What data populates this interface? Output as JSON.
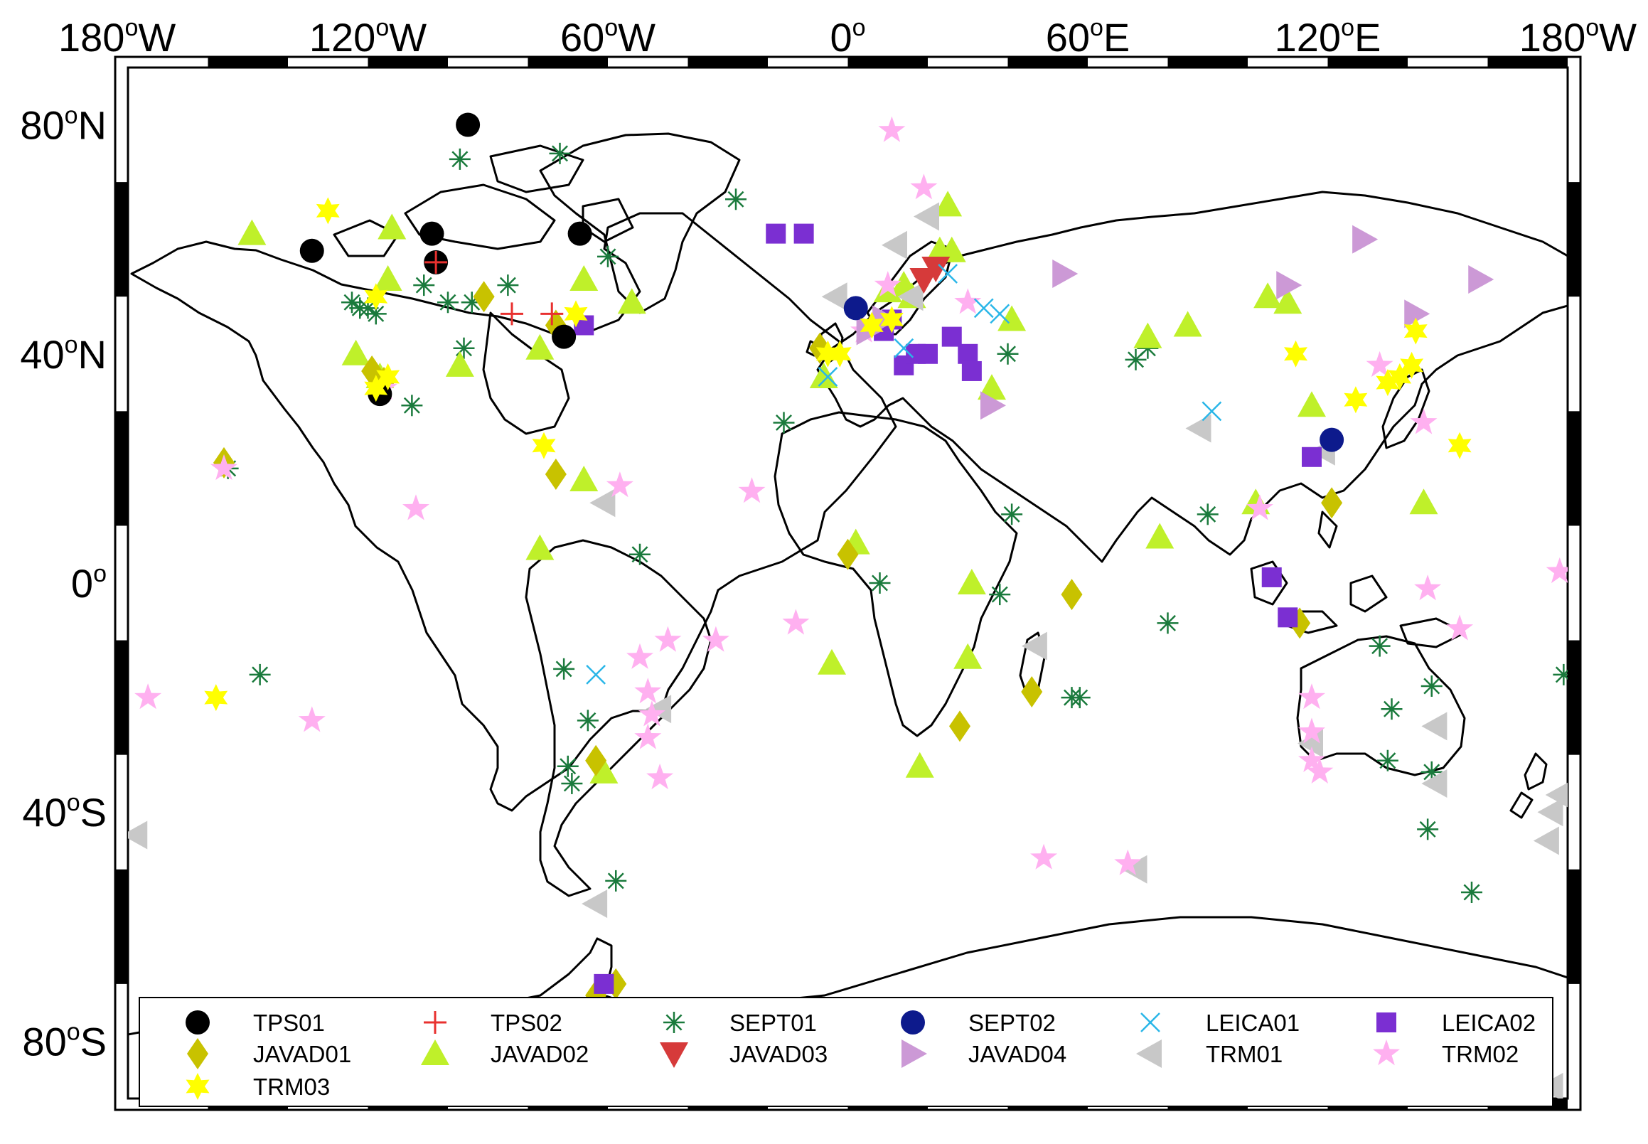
{
  "map": {
    "projection": "equirectangular",
    "lon_range": [
      -180,
      180
    ],
    "lat_range": [
      -90,
      90
    ],
    "frame_style": "alternating black and white border"
  },
  "axes": {
    "top_ticks": [
      {
        "lon": -180,
        "num": "180",
        "hemi": "W"
      },
      {
        "lon": -120,
        "num": "120",
        "hemi": "W"
      },
      {
        "lon": -60,
        "num": "60",
        "hemi": "W"
      },
      {
        "lon": 0,
        "num": "0",
        "hemi": ""
      },
      {
        "lon": 60,
        "num": "60",
        "hemi": "E"
      },
      {
        "lon": 120,
        "num": "120",
        "hemi": "E"
      },
      {
        "lon": 180,
        "num": "180",
        "hemi": "W"
      }
    ],
    "left_ticks": [
      {
        "lat": 80,
        "num": "80",
        "hemi": "N"
      },
      {
        "lat": 40,
        "num": "40",
        "hemi": "N"
      },
      {
        "lat": 0,
        "num": "0",
        "hemi": ""
      },
      {
        "lat": -40,
        "num": "40",
        "hemi": "S"
      },
      {
        "lat": -80,
        "num": "80",
        "hemi": "S"
      }
    ],
    "degree_symbol": "o"
  },
  "legend": {
    "placement": "bottom",
    "items": [
      {
        "key": "TPS01",
        "label": "TPS01",
        "marker": "circle",
        "color": "#000000"
      },
      {
        "key": "TPS02",
        "label": "TPS02",
        "marker": "plus",
        "color": "#e8312f"
      },
      {
        "key": "SEPT01",
        "label": "SEPT01",
        "marker": "asterisk",
        "color": "#1a7a3c"
      },
      {
        "key": "SEPT02",
        "label": "SEPT02",
        "marker": "circle",
        "color": "#0d1a8c"
      },
      {
        "key": "LEICA01",
        "label": "LEICA01",
        "marker": "x",
        "color": "#29b6e8"
      },
      {
        "key": "LEICA02",
        "label": "LEICA02",
        "marker": "square",
        "color": "#7b2fd2"
      },
      {
        "key": "JAVAD01",
        "label": "JAVAD01",
        "marker": "diamond",
        "color": "#c8c200"
      },
      {
        "key": "JAVAD02",
        "label": "JAVAD02",
        "marker": "triangle-up",
        "color": "#bff02a"
      },
      {
        "key": "JAVAD03",
        "label": "JAVAD03",
        "marker": "triangle-down",
        "color": "#d63a3a"
      },
      {
        "key": "JAVAD04",
        "label": "JAVAD04",
        "marker": "triangle-right",
        "color": "#cc99d6"
      },
      {
        "key": "TRM01",
        "label": "TRM01",
        "marker": "triangle-left",
        "color": "#c8c8c8"
      },
      {
        "key": "TRM02",
        "label": "TRM02",
        "marker": "star5",
        "color": "#ffb0f0"
      },
      {
        "key": "TRM03",
        "label": "TRM03",
        "marker": "star6",
        "color": "#ffff00"
      }
    ]
  },
  "stations": [
    {
      "type": "TPS01",
      "lon": -134,
      "lat": 58
    },
    {
      "type": "TPS01",
      "lon": -95,
      "lat": 80
    },
    {
      "type": "TPS01",
      "lon": -104,
      "lat": 61
    },
    {
      "type": "TPS01",
      "lon": -67,
      "lat": 61
    },
    {
      "type": "TPS01",
      "lon": -103,
      "lat": 56
    },
    {
      "type": "TPS01",
      "lon": -71,
      "lat": 43
    },
    {
      "type": "TPS01",
      "lon": -117,
      "lat": 33
    },
    {
      "type": "TPS02",
      "lon": -103,
      "lat": 56
    },
    {
      "type": "TPS02",
      "lon": -84,
      "lat": 47
    },
    {
      "type": "TPS02",
      "lon": -74,
      "lat": 47
    },
    {
      "type": "SEPT01",
      "lon": -97,
      "lat": 74
    },
    {
      "type": "SEPT01",
      "lon": -72,
      "lat": 75
    },
    {
      "type": "SEPT01",
      "lon": -60,
      "lat": 57
    },
    {
      "type": "SEPT01",
      "lon": -28,
      "lat": 67
    },
    {
      "type": "SEPT01",
      "lon": -124,
      "lat": 49
    },
    {
      "type": "SEPT01",
      "lon": -122,
      "lat": 48
    },
    {
      "type": "SEPT01",
      "lon": -120,
      "lat": 48
    },
    {
      "type": "SEPT01",
      "lon": -118,
      "lat": 47
    },
    {
      "type": "SEPT01",
      "lon": -106,
      "lat": 52
    },
    {
      "type": "SEPT01",
      "lon": -100,
      "lat": 49
    },
    {
      "type": "SEPT01",
      "lon": -94,
      "lat": 49
    },
    {
      "type": "SEPT01",
      "lon": -85,
      "lat": 52
    },
    {
      "type": "SEPT01",
      "lon": -96,
      "lat": 41
    },
    {
      "type": "SEPT01",
      "lon": -109,
      "lat": 31
    },
    {
      "type": "SEPT01",
      "lon": -155,
      "lat": 20
    },
    {
      "type": "SEPT01",
      "lon": -52,
      "lat": 5
    },
    {
      "type": "SEPT01",
      "lon": -147,
      "lat": -16
    },
    {
      "type": "SEPT01",
      "lon": -71,
      "lat": -15
    },
    {
      "type": "SEPT01",
      "lon": -65,
      "lat": -24
    },
    {
      "type": "SEPT01",
      "lon": -70,
      "lat": -32
    },
    {
      "type": "SEPT01",
      "lon": -69,
      "lat": -35
    },
    {
      "type": "SEPT01",
      "lon": -58,
      "lat": -52
    },
    {
      "type": "SEPT01",
      "lon": -16,
      "lat": 28
    },
    {
      "type": "SEPT01",
      "lon": 8,
      "lat": 0
    },
    {
      "type": "SEPT01",
      "lon": 40,
      "lat": 40
    },
    {
      "type": "SEPT01",
      "lon": 41,
      "lat": 12
    },
    {
      "type": "SEPT01",
      "lon": 38,
      "lat": -2
    },
    {
      "type": "SEPT01",
      "lon": 56,
      "lat": -20
    },
    {
      "type": "SEPT01",
      "lon": 58,
      "lat": -20
    },
    {
      "type": "SEPT01",
      "lon": 72,
      "lat": 39
    },
    {
      "type": "SEPT01",
      "lon": 75,
      "lat": 41
    },
    {
      "type": "SEPT01",
      "lon": 90,
      "lat": 12
    },
    {
      "type": "SEPT01",
      "lon": 80,
      "lat": -7
    },
    {
      "type": "SEPT01",
      "lon": 133,
      "lat": -11
    },
    {
      "type": "SEPT01",
      "lon": 136,
      "lat": -22
    },
    {
      "type": "SEPT01",
      "lon": 135,
      "lat": -31
    },
    {
      "type": "SEPT01",
      "lon": 146,
      "lat": -18
    },
    {
      "type": "SEPT01",
      "lon": 146,
      "lat": -33
    },
    {
      "type": "SEPT01",
      "lon": 145,
      "lat": -43
    },
    {
      "type": "SEPT01",
      "lon": 156,
      "lat": -54
    },
    {
      "type": "SEPT01",
      "lon": 179,
      "lat": -16
    },
    {
      "type": "SEPT01",
      "lon": 62,
      "lat": -75
    },
    {
      "type": "SEPT01",
      "lon": 77,
      "lat": -76
    },
    {
      "type": "SEPT02",
      "lon": 2,
      "lat": 48
    },
    {
      "type": "SEPT02",
      "lon": 121,
      "lat": 25
    },
    {
      "type": "LEICA01",
      "lon": -63,
      "lat": -16
    },
    {
      "type": "LEICA01",
      "lon": 38,
      "lat": 47
    },
    {
      "type": "LEICA01",
      "lon": 34,
      "lat": 48
    },
    {
      "type": "LEICA01",
      "lon": 25,
      "lat": 54
    },
    {
      "type": "LEICA01",
      "lon": 91,
      "lat": 30
    },
    {
      "type": "LEICA01",
      "lon": -5,
      "lat": 36
    },
    {
      "type": "LEICA01",
      "lon": 14,
      "lat": 41
    },
    {
      "type": "LEICA02",
      "lon": -18,
      "lat": 61
    },
    {
      "type": "LEICA02",
      "lon": -11,
      "lat": 61
    },
    {
      "type": "LEICA02",
      "lon": 14,
      "lat": 38
    },
    {
      "type": "LEICA02",
      "lon": 17,
      "lat": 40
    },
    {
      "type": "LEICA02",
      "lon": 20,
      "lat": 40
    },
    {
      "type": "LEICA02",
      "lon": 26,
      "lat": 43
    },
    {
      "type": "LEICA02",
      "lon": 30,
      "lat": 40
    },
    {
      "type": "LEICA02",
      "lon": 31,
      "lat": 37
    },
    {
      "type": "LEICA02",
      "lon": 11,
      "lat": 46
    },
    {
      "type": "LEICA02",
      "lon": 9,
      "lat": 44
    },
    {
      "type": "LEICA02",
      "lon": -66,
      "lat": 45
    },
    {
      "type": "LEICA02",
      "lon": 116,
      "lat": 22
    },
    {
      "type": "LEICA02",
      "lon": 106,
      "lat": 1
    },
    {
      "type": "LEICA02",
      "lon": 110,
      "lat": -6
    },
    {
      "type": "LEICA02",
      "lon": -61,
      "lat": -70
    },
    {
      "type": "JAVAD01",
      "lon": -156,
      "lat": 21
    },
    {
      "type": "JAVAD01",
      "lon": -119,
      "lat": 37
    },
    {
      "type": "JAVAD01",
      "lon": -116,
      "lat": 35
    },
    {
      "type": "JAVAD01",
      "lon": -91,
      "lat": 50
    },
    {
      "type": "JAVAD01",
      "lon": -73,
      "lat": 45
    },
    {
      "type": "JAVAD01",
      "lon": -73,
      "lat": 19
    },
    {
      "type": "JAVAD01",
      "lon": -7,
      "lat": 41
    },
    {
      "type": "JAVAD01",
      "lon": 0,
      "lat": 5
    },
    {
      "type": "JAVAD01",
      "lon": 56,
      "lat": -2
    },
    {
      "type": "JAVAD01",
      "lon": 28,
      "lat": -25
    },
    {
      "type": "JAVAD01",
      "lon": 46,
      "lat": -19
    },
    {
      "type": "JAVAD01",
      "lon": 121,
      "lat": 14
    },
    {
      "type": "JAVAD01",
      "lon": 113,
      "lat": -7
    },
    {
      "type": "JAVAD01",
      "lon": -63,
      "lat": -31
    },
    {
      "type": "JAVAD01",
      "lon": -63,
      "lat": -72
    },
    {
      "type": "JAVAD01",
      "lon": -58,
      "lat": -70
    },
    {
      "type": "JAVAD02",
      "lon": -149,
      "lat": 61
    },
    {
      "type": "JAVAD02",
      "lon": -114,
      "lat": 62
    },
    {
      "type": "JAVAD02",
      "lon": -115,
      "lat": 53
    },
    {
      "type": "JAVAD02",
      "lon": -123,
      "lat": 40
    },
    {
      "type": "JAVAD02",
      "lon": -117,
      "lat": 36
    },
    {
      "type": "JAVAD02",
      "lon": -97,
      "lat": 38
    },
    {
      "type": "JAVAD02",
      "lon": -77,
      "lat": 41
    },
    {
      "type": "JAVAD02",
      "lon": -66,
      "lat": 53
    },
    {
      "type": "JAVAD02",
      "lon": -54,
      "lat": 49
    },
    {
      "type": "JAVAD02",
      "lon": -66,
      "lat": 18
    },
    {
      "type": "JAVAD02",
      "lon": -77,
      "lat": 6
    },
    {
      "type": "JAVAD02",
      "lon": -61,
      "lat": -33
    },
    {
      "type": "JAVAD02",
      "lon": -6,
      "lat": 36
    },
    {
      "type": "JAVAD02",
      "lon": -4,
      "lat": -14
    },
    {
      "type": "JAVAD02",
      "lon": 2,
      "lat": 7
    },
    {
      "type": "JAVAD02",
      "lon": 10,
      "lat": 51
    },
    {
      "type": "JAVAD02",
      "lon": 14,
      "lat": 52
    },
    {
      "type": "JAVAD02",
      "lon": 16,
      "lat": 50
    },
    {
      "type": "JAVAD02",
      "lon": 23,
      "lat": 58
    },
    {
      "type": "JAVAD02",
      "lon": 26,
      "lat": 58
    },
    {
      "type": "JAVAD02",
      "lon": 25,
      "lat": 66
    },
    {
      "type": "JAVAD02",
      "lon": 31,
      "lat": 0
    },
    {
      "type": "JAVAD02",
      "lon": 36,
      "lat": 34
    },
    {
      "type": "JAVAD02",
      "lon": 41,
      "lat": 46
    },
    {
      "type": "JAVAD02",
      "lon": 30,
      "lat": -13
    },
    {
      "type": "JAVAD02",
      "lon": 18,
      "lat": -32
    },
    {
      "type": "JAVAD02",
      "lon": 75,
      "lat": 43
    },
    {
      "type": "JAVAD02",
      "lon": 85,
      "lat": 45
    },
    {
      "type": "JAVAD02",
      "lon": 78,
      "lat": 8
    },
    {
      "type": "JAVAD02",
      "lon": 105,
      "lat": 50
    },
    {
      "type": "JAVAD02",
      "lon": 110,
      "lat": 49
    },
    {
      "type": "JAVAD02",
      "lon": 116,
      "lat": 31
    },
    {
      "type": "JAVAD02",
      "lon": 144,
      "lat": 14
    },
    {
      "type": "JAVAD02",
      "lon": 102,
      "lat": 14
    },
    {
      "type": "JAVAD03",
      "lon": 22,
      "lat": 55
    },
    {
      "type": "JAVAD03",
      "lon": 19,
      "lat": 53
    },
    {
      "type": "JAVAD04",
      "lon": 54,
      "lat": 54
    },
    {
      "type": "JAVAD04",
      "lon": 129,
      "lat": 60
    },
    {
      "type": "JAVAD04",
      "lon": 110,
      "lat": 52
    },
    {
      "type": "JAVAD04",
      "lon": 158,
      "lat": 53
    },
    {
      "type": "JAVAD04",
      "lon": 142,
      "lat": 47
    },
    {
      "type": "JAVAD04",
      "lon": 36,
      "lat": 31
    },
    {
      "type": "JAVAD04",
      "lon": 9,
      "lat": 46
    },
    {
      "type": "JAVAD04",
      "lon": 5,
      "lat": 44
    },
    {
      "type": "TRM01",
      "lon": -3,
      "lat": 50
    },
    {
      "type": "TRM01",
      "lon": 12,
      "lat": 59
    },
    {
      "type": "TRM01",
      "lon": 16,
      "lat": 50
    },
    {
      "type": "TRM01",
      "lon": 20,
      "lat": 64
    },
    {
      "type": "TRM01",
      "lon": 88,
      "lat": 27
    },
    {
      "type": "TRM01",
      "lon": 119,
      "lat": 23
    },
    {
      "type": "TRM01",
      "lon": -61,
      "lat": 14
    },
    {
      "type": "TRM01",
      "lon": -47,
      "lat": -22
    },
    {
      "type": "TRM01",
      "lon": -63,
      "lat": -56
    },
    {
      "type": "TRM01",
      "lon": 47,
      "lat": -11
    },
    {
      "type": "TRM01",
      "lon": 147,
      "lat": -25
    },
    {
      "type": "TRM01",
      "lon": 147,
      "lat": -35
    },
    {
      "type": "TRM01",
      "lon": 116,
      "lat": -28
    },
    {
      "type": "TRM01",
      "lon": 72,
      "lat": -50
    },
    {
      "type": "TRM01",
      "lon": 40,
      "lat": -79
    },
    {
      "type": "TRM01",
      "lon": 176,
      "lat": -40
    },
    {
      "type": "TRM01",
      "lon": 178,
      "lat": -37
    },
    {
      "type": "TRM01",
      "lon": 175,
      "lat": -45
    },
    {
      "type": "TRM01",
      "lon": -178,
      "lat": -44
    },
    {
      "type": "TRM01",
      "lon": 176,
      "lat": -88
    },
    {
      "type": "TRM02",
      "lon": 11,
      "lat": 79
    },
    {
      "type": "TRM02",
      "lon": 19,
      "lat": 69
    },
    {
      "type": "TRM02",
      "lon": 30,
      "lat": 49
    },
    {
      "type": "TRM02",
      "lon": 10,
      "lat": 52
    },
    {
      "type": "TRM02",
      "lon": 4,
      "lat": 44
    },
    {
      "type": "TRM02",
      "lon": -116,
      "lat": 34
    },
    {
      "type": "TRM02",
      "lon": -156,
      "lat": 20
    },
    {
      "type": "TRM02",
      "lon": -108,
      "lat": 13
    },
    {
      "type": "TRM02",
      "lon": -57,
      "lat": 17
    },
    {
      "type": "TRM02",
      "lon": -24,
      "lat": 16
    },
    {
      "type": "TRM02",
      "lon": -45,
      "lat": -10
    },
    {
      "type": "TRM02",
      "lon": -52,
      "lat": -13
    },
    {
      "type": "TRM02",
      "lon": -50,
      "lat": -19
    },
    {
      "type": "TRM02",
      "lon": -49,
      "lat": -23
    },
    {
      "type": "TRM02",
      "lon": -50,
      "lat": -27
    },
    {
      "type": "TRM02",
      "lon": -47,
      "lat": -34
    },
    {
      "type": "TRM02",
      "lon": -33,
      "lat": -10
    },
    {
      "type": "TRM02",
      "lon": -13,
      "lat": -7
    },
    {
      "type": "TRM02",
      "lon": -175,
      "lat": -20
    },
    {
      "type": "TRM02",
      "lon": -134,
      "lat": -24
    },
    {
      "type": "TRM02",
      "lon": 49,
      "lat": -48
    },
    {
      "type": "TRM02",
      "lon": 70,
      "lat": -49
    },
    {
      "type": "TRM02",
      "lon": 103,
      "lat": 13
    },
    {
      "type": "TRM02",
      "lon": 133,
      "lat": 38
    },
    {
      "type": "TRM02",
      "lon": 144,
      "lat": 28
    },
    {
      "type": "TRM02",
      "lon": 145,
      "lat": -1
    },
    {
      "type": "TRM02",
      "lon": 153,
      "lat": -8
    },
    {
      "type": "TRM02",
      "lon": 178,
      "lat": 2
    },
    {
      "type": "TRM02",
      "lon": 116,
      "lat": -20
    },
    {
      "type": "TRM02",
      "lon": 116,
      "lat": -26
    },
    {
      "type": "TRM02",
      "lon": 116,
      "lat": -31
    },
    {
      "type": "TRM02",
      "lon": 118,
      "lat": -33
    },
    {
      "type": "TRM03",
      "lon": -130,
      "lat": 65
    },
    {
      "type": "TRM03",
      "lon": -118,
      "lat": 50
    },
    {
      "type": "TRM03",
      "lon": -115,
      "lat": 36
    },
    {
      "type": "TRM03",
      "lon": -118,
      "lat": 34
    },
    {
      "type": "TRM03",
      "lon": -76,
      "lat": 24
    },
    {
      "type": "TRM03",
      "lon": -68,
      "lat": 47
    },
    {
      "type": "TRM03",
      "lon": -158,
      "lat": -20
    },
    {
      "type": "TRM03",
      "lon": -5,
      "lat": 40
    },
    {
      "type": "TRM03",
      "lon": -2,
      "lat": 40
    },
    {
      "type": "TRM03",
      "lon": 6,
      "lat": 45
    },
    {
      "type": "TRM03",
      "lon": 11,
      "lat": 46
    },
    {
      "type": "TRM03",
      "lon": 112,
      "lat": 40
    },
    {
      "type": "TRM03",
      "lon": 127,
      "lat": 32
    },
    {
      "type": "TRM03",
      "lon": 135,
      "lat": 35
    },
    {
      "type": "TRM03",
      "lon": 138,
      "lat": 36
    },
    {
      "type": "TRM03",
      "lon": 141,
      "lat": 38
    },
    {
      "type": "TRM03",
      "lon": 142,
      "lat": 44
    },
    {
      "type": "TRM03",
      "lon": 153,
      "lat": 24
    },
    {
      "type": "TRM03",
      "lon": 170,
      "lat": -87
    }
  ]
}
